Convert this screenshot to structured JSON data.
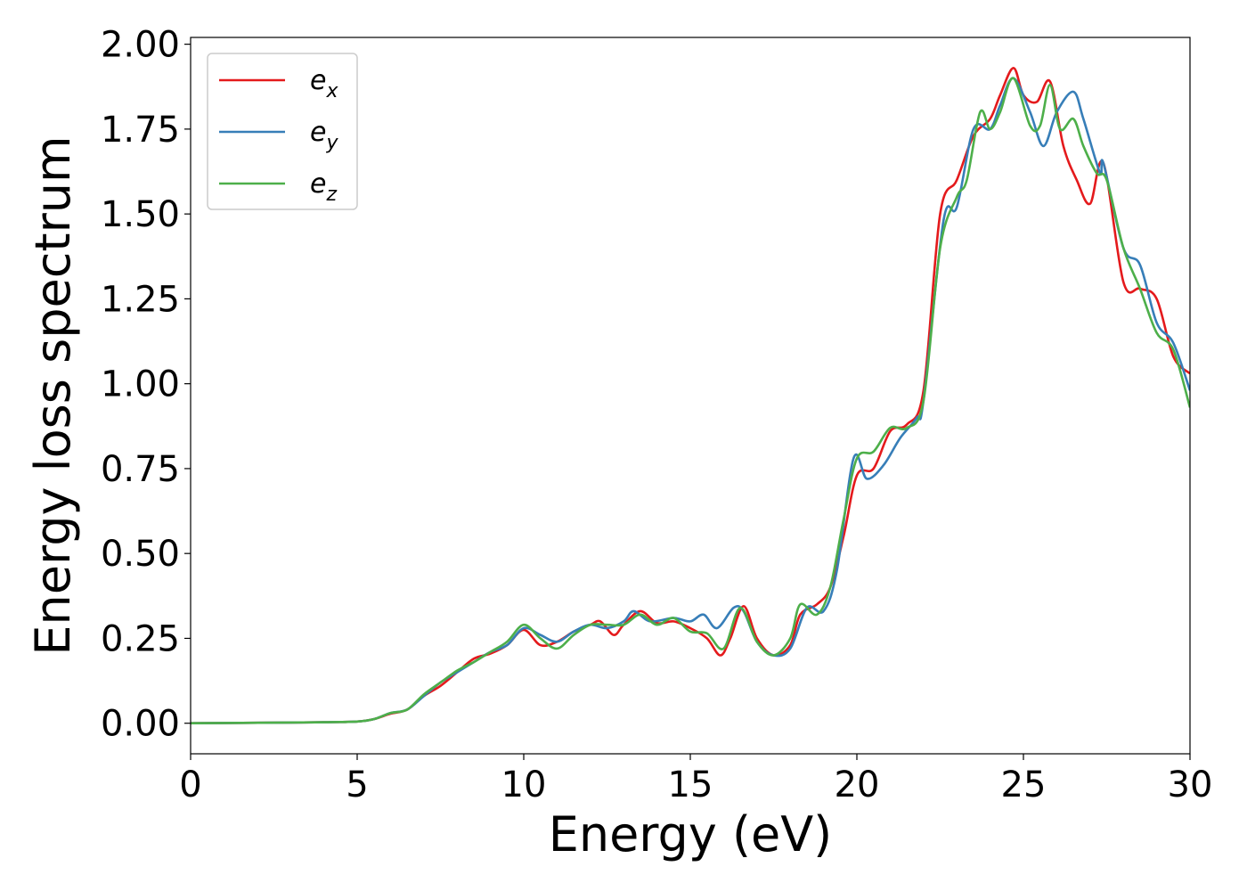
{
  "chart_data": {
    "type": "line",
    "xlabel": "Energy (eV)",
    "ylabel": "Energy loss spectrum",
    "xlim": [
      0,
      30
    ],
    "ylim": [
      -0.09,
      2.02
    ],
    "xticks": [
      0,
      5,
      10,
      15,
      20,
      25,
      30
    ],
    "xtick_labels": [
      "0",
      "5",
      "10",
      "15",
      "20",
      "25",
      "30"
    ],
    "yticks": [
      0.0,
      0.25,
      0.5,
      0.75,
      1.0,
      1.25,
      1.5,
      1.75,
      2.0
    ],
    "ytick_labels": [
      "0.00",
      "0.25",
      "0.50",
      "0.75",
      "1.00",
      "1.25",
      "1.50",
      "1.75",
      "2.00"
    ],
    "grid": false,
    "legend_position": "top-left",
    "series": [
      {
        "name": "e",
        "sub": "x",
        "color": "#e41a1c",
        "points": [
          [
            0,
            0
          ],
          [
            3,
            0.002
          ],
          [
            4,
            0.003
          ],
          [
            5,
            0.005
          ],
          [
            5.5,
            0.012
          ],
          [
            6,
            0.028
          ],
          [
            6.5,
            0.04
          ],
          [
            7,
            0.08
          ],
          [
            7.5,
            0.11
          ],
          [
            8,
            0.15
          ],
          [
            8.5,
            0.19
          ],
          [
            9,
            0.205
          ],
          [
            9.5,
            0.23
          ],
          [
            10,
            0.275
          ],
          [
            10.5,
            0.23
          ],
          [
            11,
            0.24
          ],
          [
            11.5,
            0.27
          ],
          [
            12,
            0.29
          ],
          [
            12.3,
            0.3
          ],
          [
            12.7,
            0.26
          ],
          [
            13,
            0.29
          ],
          [
            13.5,
            0.33
          ],
          [
            14,
            0.295
          ],
          [
            14.5,
            0.3
          ],
          [
            15,
            0.28
          ],
          [
            15.5,
            0.25
          ],
          [
            15.9,
            0.2
          ],
          [
            16.2,
            0.25
          ],
          [
            16.6,
            0.345
          ],
          [
            17,
            0.25
          ],
          [
            17.5,
            0.2
          ],
          [
            18,
            0.23
          ],
          [
            18.3,
            0.32
          ],
          [
            18.8,
            0.35
          ],
          [
            19.2,
            0.4
          ],
          [
            19.6,
            0.55
          ],
          [
            20,
            0.73
          ],
          [
            20.5,
            0.75
          ],
          [
            21,
            0.86
          ],
          [
            21.5,
            0.88
          ],
          [
            22,
            0.98
          ],
          [
            22.5,
            1.5
          ],
          [
            23,
            1.6
          ],
          [
            23.5,
            1.73
          ],
          [
            24,
            1.78
          ],
          [
            24.3,
            1.85
          ],
          [
            24.7,
            1.93
          ],
          [
            25,
            1.85
          ],
          [
            25.4,
            1.83
          ],
          [
            25.8,
            1.89
          ],
          [
            26.2,
            1.7
          ],
          [
            26.6,
            1.6
          ],
          [
            27,
            1.53
          ],
          [
            27.4,
            1.65
          ],
          [
            28,
            1.3
          ],
          [
            28.5,
            1.28
          ],
          [
            29,
            1.25
          ],
          [
            29.5,
            1.08
          ],
          [
            30,
            1.03
          ]
        ]
      },
      {
        "name": "e",
        "sub": "y",
        "color": "#377eb8",
        "points": [
          [
            0,
            0
          ],
          [
            3,
            0.002
          ],
          [
            4,
            0.003
          ],
          [
            5,
            0.005
          ],
          [
            5.5,
            0.012
          ],
          [
            6,
            0.03
          ],
          [
            6.5,
            0.04
          ],
          [
            7,
            0.08
          ],
          [
            7.5,
            0.12
          ],
          [
            8,
            0.15
          ],
          [
            8.5,
            0.18
          ],
          [
            9,
            0.21
          ],
          [
            9.5,
            0.23
          ],
          [
            10,
            0.28
          ],
          [
            10.5,
            0.26
          ],
          [
            11,
            0.24
          ],
          [
            11.5,
            0.27
          ],
          [
            12,
            0.29
          ],
          [
            12.5,
            0.28
          ],
          [
            13,
            0.3
          ],
          [
            13.3,
            0.33
          ],
          [
            13.8,
            0.3
          ],
          [
            14.5,
            0.31
          ],
          [
            15,
            0.3
          ],
          [
            15.4,
            0.32
          ],
          [
            15.8,
            0.28
          ],
          [
            16.3,
            0.34
          ],
          [
            16.6,
            0.33
          ],
          [
            17,
            0.24
          ],
          [
            17.5,
            0.2
          ],
          [
            18,
            0.22
          ],
          [
            18.5,
            0.34
          ],
          [
            19,
            0.33
          ],
          [
            19.4,
            0.45
          ],
          [
            19.9,
            0.78
          ],
          [
            20.3,
            0.72
          ],
          [
            20.8,
            0.76
          ],
          [
            21.3,
            0.84
          ],
          [
            21.8,
            0.9
          ],
          [
            22,
            0.95
          ],
          [
            22.6,
            1.48
          ],
          [
            23,
            1.52
          ],
          [
            23.5,
            1.75
          ],
          [
            24,
            1.75
          ],
          [
            24.3,
            1.82
          ],
          [
            24.7,
            1.9
          ],
          [
            25.2,
            1.8
          ],
          [
            25.6,
            1.7
          ],
          [
            26,
            1.8
          ],
          [
            26.5,
            1.86
          ],
          [
            26.8,
            1.78
          ],
          [
            27.3,
            1.62
          ],
          [
            27.4,
            1.65
          ],
          [
            28,
            1.4
          ],
          [
            28.5,
            1.35
          ],
          [
            29,
            1.18
          ],
          [
            29.5,
            1.12
          ],
          [
            30,
            0.98
          ]
        ]
      },
      {
        "name": "e",
        "sub": "z",
        "color": "#4daf4a",
        "points": [
          [
            0,
            0
          ],
          [
            3,
            0.002
          ],
          [
            4,
            0.003
          ],
          [
            5,
            0.005
          ],
          [
            5.5,
            0.012
          ],
          [
            6,
            0.03
          ],
          [
            6.5,
            0.04
          ],
          [
            7,
            0.085
          ],
          [
            7.5,
            0.12
          ],
          [
            8,
            0.155
          ],
          [
            8.5,
            0.18
          ],
          [
            9,
            0.21
          ],
          [
            9.5,
            0.24
          ],
          [
            10,
            0.29
          ],
          [
            10.5,
            0.25
          ],
          [
            11,
            0.22
          ],
          [
            11.5,
            0.26
          ],
          [
            12,
            0.29
          ],
          [
            12.5,
            0.29
          ],
          [
            13,
            0.29
          ],
          [
            13.5,
            0.32
          ],
          [
            14,
            0.29
          ],
          [
            14.5,
            0.31
          ],
          [
            15,
            0.27
          ],
          [
            15.5,
            0.265
          ],
          [
            16,
            0.22
          ],
          [
            16.5,
            0.34
          ],
          [
            17,
            0.24
          ],
          [
            17.5,
            0.2
          ],
          [
            18,
            0.25
          ],
          [
            18.3,
            0.35
          ],
          [
            18.8,
            0.32
          ],
          [
            19.2,
            0.4
          ],
          [
            19.6,
            0.6
          ],
          [
            20,
            0.78
          ],
          [
            20.5,
            0.8
          ],
          [
            21,
            0.87
          ],
          [
            21.5,
            0.87
          ],
          [
            22,
            0.95
          ],
          [
            22.5,
            1.4
          ],
          [
            23,
            1.55
          ],
          [
            23.3,
            1.6
          ],
          [
            23.7,
            1.8
          ],
          [
            24,
            1.75
          ],
          [
            24.3,
            1.8
          ],
          [
            24.7,
            1.9
          ],
          [
            25.2,
            1.76
          ],
          [
            25.5,
            1.76
          ],
          [
            25.8,
            1.88
          ],
          [
            26.1,
            1.75
          ],
          [
            26.5,
            1.78
          ],
          [
            26.8,
            1.7
          ],
          [
            27.2,
            1.62
          ],
          [
            27.5,
            1.6
          ],
          [
            28,
            1.4
          ],
          [
            28.5,
            1.28
          ],
          [
            29,
            1.15
          ],
          [
            29.5,
            1.1
          ],
          [
            30,
            0.93
          ]
        ]
      }
    ]
  }
}
